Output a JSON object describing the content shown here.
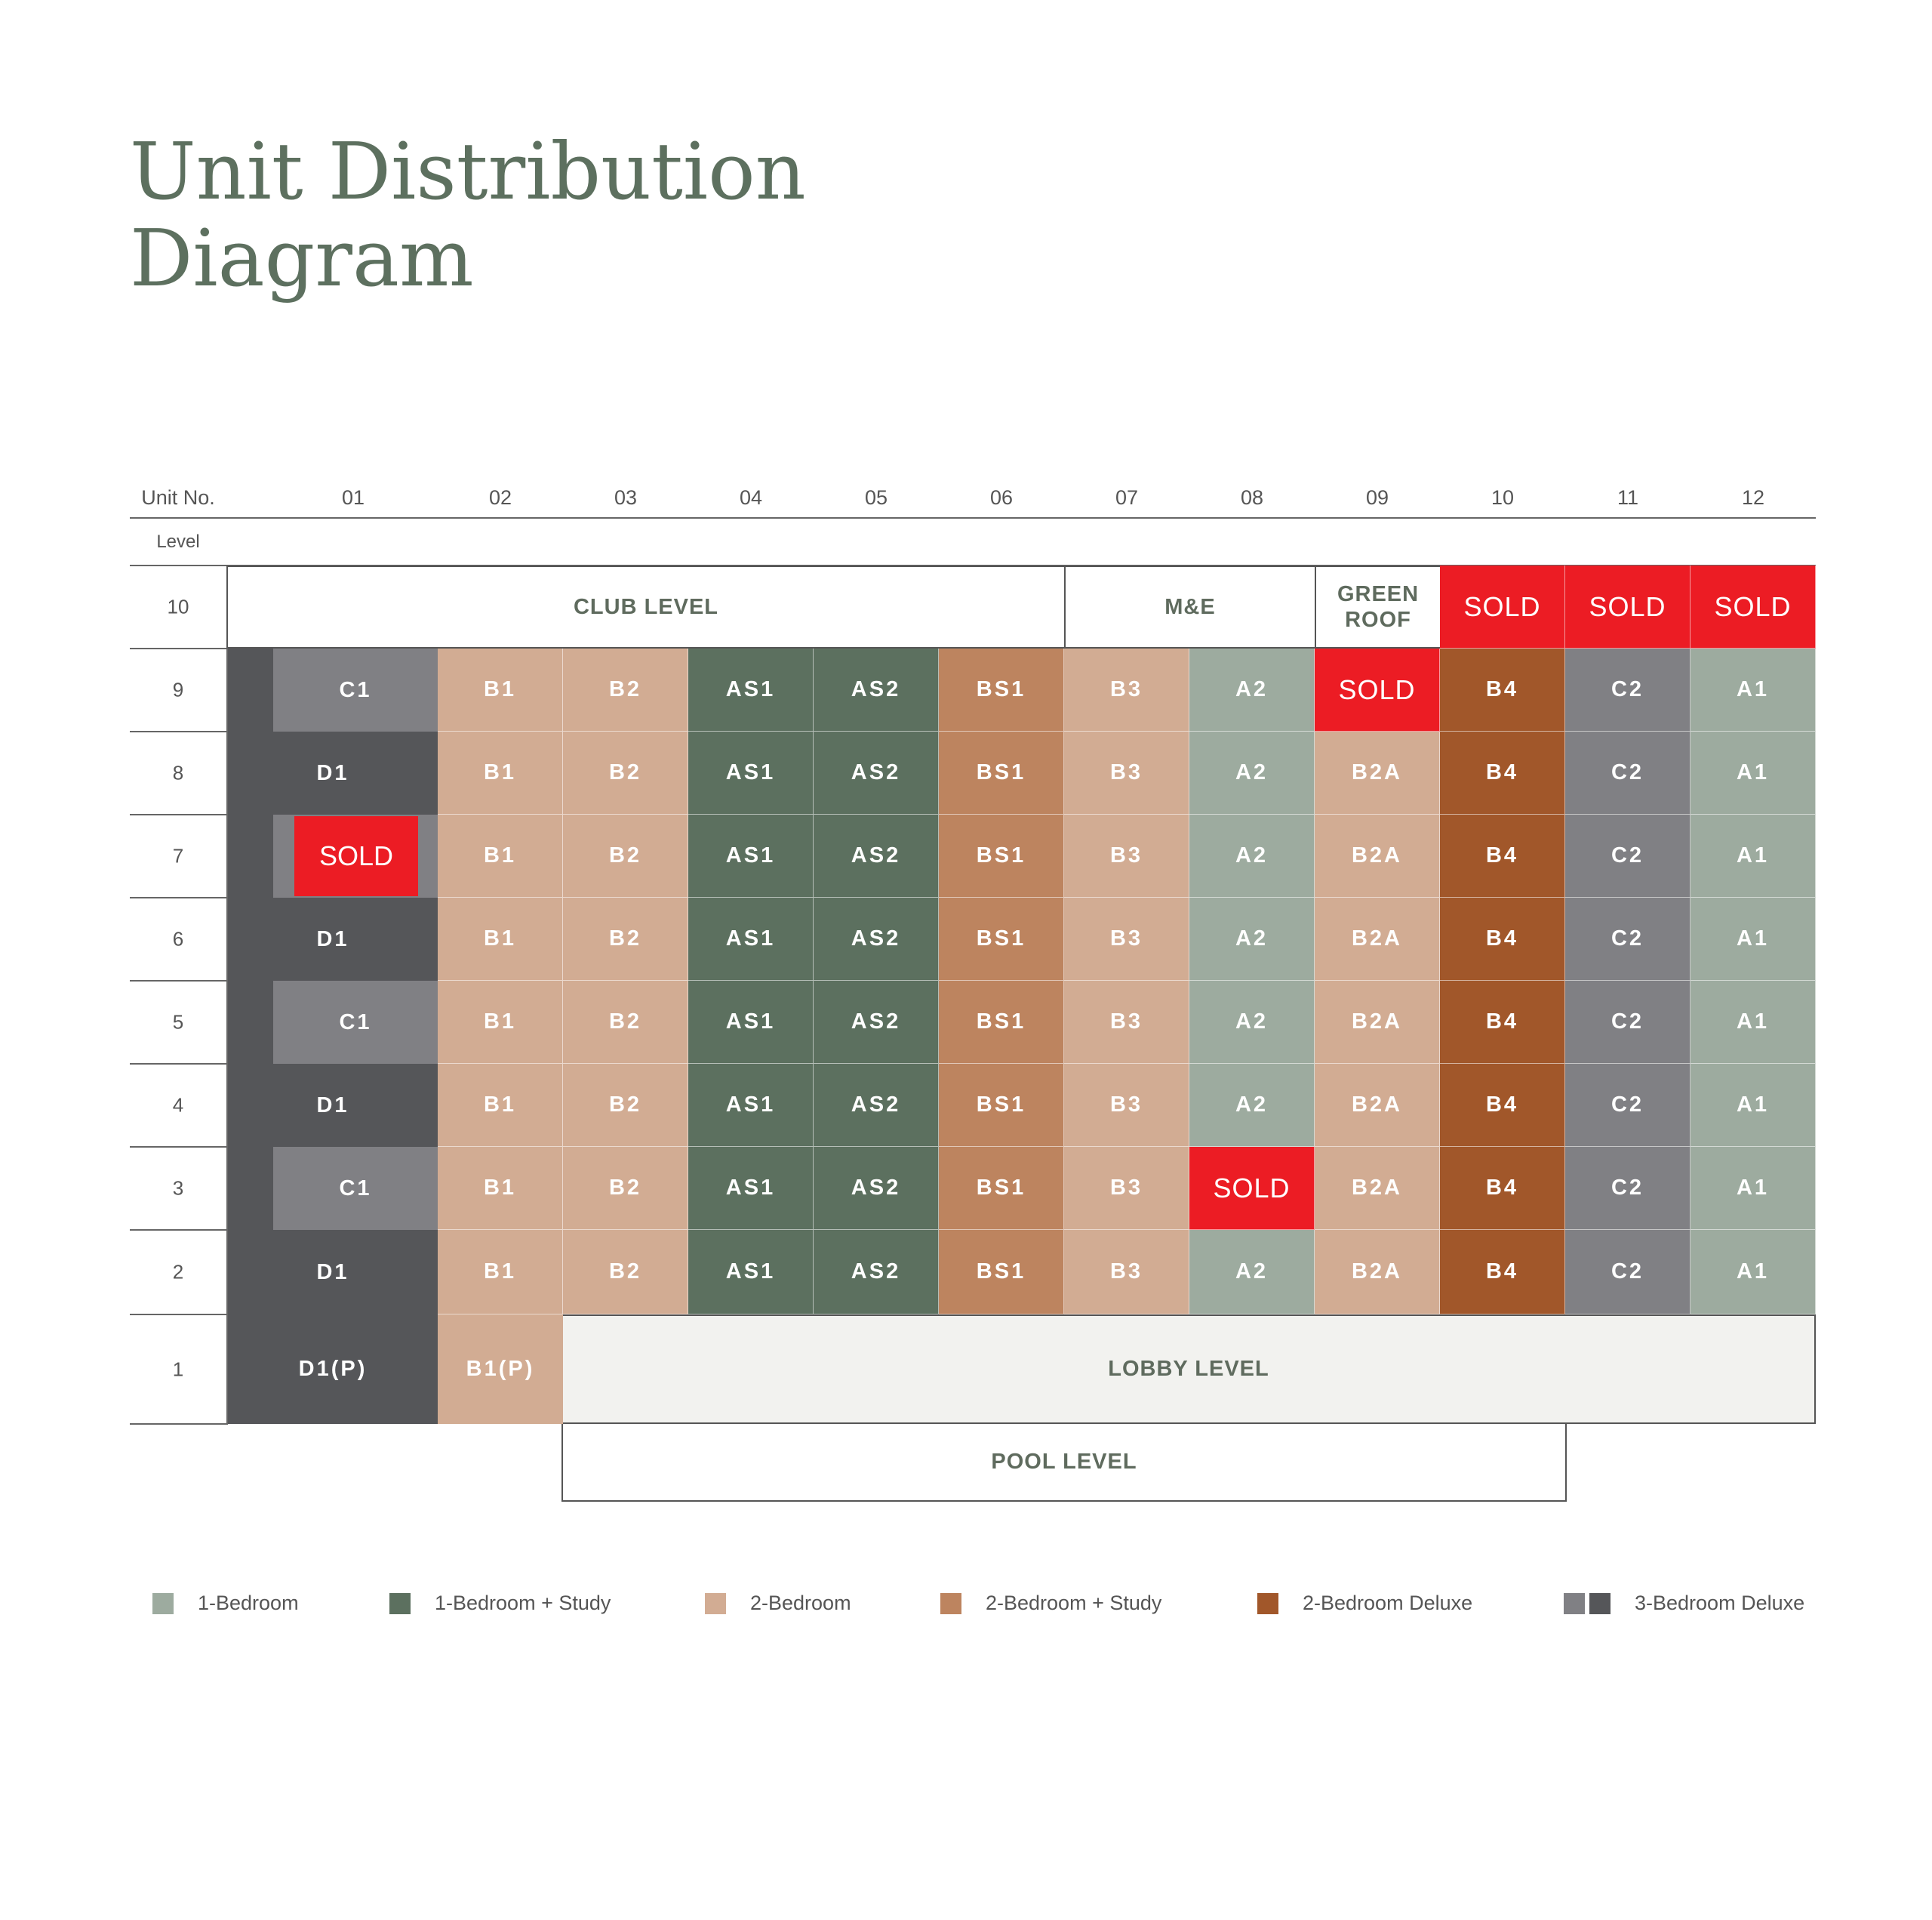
{
  "title_line1": "Unit Distribution",
  "title_line2": "Diagram",
  "header": {
    "unit_no_label": "Unit No.",
    "level_label": "Level",
    "units": [
      "01",
      "02",
      "03",
      "04",
      "05",
      "06",
      "07",
      "08",
      "09",
      "10",
      "11",
      "12"
    ]
  },
  "colors": {
    "one_bed": "#9dab9f",
    "one_bed_study": "#5c705f",
    "two_bed": "#d2ac93",
    "two_bed_study": "#bd845f",
    "two_bed_deluxe": "#a1572a",
    "three_bed_deluxe_light": "#808084",
    "three_bed_deluxe_dark": "#555659",
    "sold": "#ec1c24"
  },
  "levels": [
    "10",
    "9",
    "8",
    "7",
    "6",
    "5",
    "4",
    "3",
    "2",
    "1"
  ],
  "level10": {
    "club": "CLUB LEVEL",
    "me": "M&E",
    "green_roof": "GREEN ROOF",
    "sold": [
      "SOLD",
      "SOLD",
      "SOLD"
    ]
  },
  "rows": [
    {
      "level": "9",
      "col1": {
        "label": "C1",
        "kind": "c1"
      },
      "units": [
        {
          "label": "B1",
          "type": "two_bed"
        },
        {
          "label": "B2",
          "type": "two_bed"
        },
        {
          "label": "AS1",
          "type": "one_bed_study"
        },
        {
          "label": "AS2",
          "type": "one_bed_study"
        },
        {
          "label": "BS1",
          "type": "two_bed_study"
        },
        {
          "label": "B3",
          "type": "two_bed"
        },
        {
          "label": "A2",
          "type": "one_bed"
        },
        {
          "label": "SOLD",
          "type": "sold"
        },
        {
          "label": "B4",
          "type": "two_bed_deluxe"
        },
        {
          "label": "C2",
          "type": "three_bed_deluxe_light"
        },
        {
          "label": "A1",
          "type": "one_bed"
        }
      ]
    },
    {
      "level": "8",
      "col1": {
        "label": "D1",
        "kind": "d1"
      },
      "units": [
        {
          "label": "B1",
          "type": "two_bed"
        },
        {
          "label": "B2",
          "type": "two_bed"
        },
        {
          "label": "AS1",
          "type": "one_bed_study"
        },
        {
          "label": "AS2",
          "type": "one_bed_study"
        },
        {
          "label": "BS1",
          "type": "two_bed_study"
        },
        {
          "label": "B3",
          "type": "two_bed"
        },
        {
          "label": "A2",
          "type": "one_bed"
        },
        {
          "label": "B2A",
          "type": "two_bed"
        },
        {
          "label": "B4",
          "type": "two_bed_deluxe"
        },
        {
          "label": "C2",
          "type": "three_bed_deluxe_light"
        },
        {
          "label": "A1",
          "type": "one_bed"
        }
      ]
    },
    {
      "level": "7",
      "col1": {
        "label": "SOLD",
        "kind": "c1sold"
      },
      "units": [
        {
          "label": "B1",
          "type": "two_bed"
        },
        {
          "label": "B2",
          "type": "two_bed"
        },
        {
          "label": "AS1",
          "type": "one_bed_study"
        },
        {
          "label": "AS2",
          "type": "one_bed_study"
        },
        {
          "label": "BS1",
          "type": "two_bed_study"
        },
        {
          "label": "B3",
          "type": "two_bed"
        },
        {
          "label": "A2",
          "type": "one_bed"
        },
        {
          "label": "B2A",
          "type": "two_bed"
        },
        {
          "label": "B4",
          "type": "two_bed_deluxe"
        },
        {
          "label": "C2",
          "type": "three_bed_deluxe_light"
        },
        {
          "label": "A1",
          "type": "one_bed"
        }
      ]
    },
    {
      "level": "6",
      "col1": {
        "label": "D1",
        "kind": "d1"
      },
      "units": [
        {
          "label": "B1",
          "type": "two_bed"
        },
        {
          "label": "B2",
          "type": "two_bed"
        },
        {
          "label": "AS1",
          "type": "one_bed_study"
        },
        {
          "label": "AS2",
          "type": "one_bed_study"
        },
        {
          "label": "BS1",
          "type": "two_bed_study"
        },
        {
          "label": "B3",
          "type": "two_bed"
        },
        {
          "label": "A2",
          "type": "one_bed"
        },
        {
          "label": "B2A",
          "type": "two_bed"
        },
        {
          "label": "B4",
          "type": "two_bed_deluxe"
        },
        {
          "label": "C2",
          "type": "three_bed_deluxe_light"
        },
        {
          "label": "A1",
          "type": "one_bed"
        }
      ]
    },
    {
      "level": "5",
      "col1": {
        "label": "C1",
        "kind": "c1"
      },
      "units": [
        {
          "label": "B1",
          "type": "two_bed"
        },
        {
          "label": "B2",
          "type": "two_bed"
        },
        {
          "label": "AS1",
          "type": "one_bed_study"
        },
        {
          "label": "AS2",
          "type": "one_bed_study"
        },
        {
          "label": "BS1",
          "type": "two_bed_study"
        },
        {
          "label": "B3",
          "type": "two_bed"
        },
        {
          "label": "A2",
          "type": "one_bed"
        },
        {
          "label": "B2A",
          "type": "two_bed"
        },
        {
          "label": "B4",
          "type": "two_bed_deluxe"
        },
        {
          "label": "C2",
          "type": "three_bed_deluxe_light"
        },
        {
          "label": "A1",
          "type": "one_bed"
        }
      ]
    },
    {
      "level": "4",
      "col1": {
        "label": "D1",
        "kind": "d1"
      },
      "units": [
        {
          "label": "B1",
          "type": "two_bed"
        },
        {
          "label": "B2",
          "type": "two_bed"
        },
        {
          "label": "AS1",
          "type": "one_bed_study"
        },
        {
          "label": "AS2",
          "type": "one_bed_study"
        },
        {
          "label": "BS1",
          "type": "two_bed_study"
        },
        {
          "label": "B3",
          "type": "two_bed"
        },
        {
          "label": "A2",
          "type": "one_bed"
        },
        {
          "label": "B2A",
          "type": "two_bed"
        },
        {
          "label": "B4",
          "type": "two_bed_deluxe"
        },
        {
          "label": "C2",
          "type": "three_bed_deluxe_light"
        },
        {
          "label": "A1",
          "type": "one_bed"
        }
      ]
    },
    {
      "level": "3",
      "col1": {
        "label": "C1",
        "kind": "c1"
      },
      "units": [
        {
          "label": "B1",
          "type": "two_bed"
        },
        {
          "label": "B2",
          "type": "two_bed"
        },
        {
          "label": "AS1",
          "type": "one_bed_study"
        },
        {
          "label": "AS2",
          "type": "one_bed_study"
        },
        {
          "label": "BS1",
          "type": "two_bed_study"
        },
        {
          "label": "B3",
          "type": "two_bed"
        },
        {
          "label": "SOLD",
          "type": "sold"
        },
        {
          "label": "B2A",
          "type": "two_bed"
        },
        {
          "label": "B4",
          "type": "two_bed_deluxe"
        },
        {
          "label": "C2",
          "type": "three_bed_deluxe_light"
        },
        {
          "label": "A1",
          "type": "one_bed"
        }
      ]
    },
    {
      "level": "2",
      "col1": {
        "label": "D1",
        "kind": "d1"
      },
      "units": [
        {
          "label": "B1",
          "type": "two_bed"
        },
        {
          "label": "B2",
          "type": "two_bed"
        },
        {
          "label": "AS1",
          "type": "one_bed_study"
        },
        {
          "label": "AS2",
          "type": "one_bed_study"
        },
        {
          "label": "BS1",
          "type": "two_bed_study"
        },
        {
          "label": "B3",
          "type": "two_bed"
        },
        {
          "label": "A2",
          "type": "one_bed"
        },
        {
          "label": "B2A",
          "type": "two_bed"
        },
        {
          "label": "B4",
          "type": "two_bed_deluxe"
        },
        {
          "label": "C2",
          "type": "three_bed_deluxe_light"
        },
        {
          "label": "A1",
          "type": "one_bed"
        }
      ]
    }
  ],
  "level1": {
    "d1p": "D1(P)",
    "b1p": "B1(P)",
    "lobby": "LOBBY LEVEL"
  },
  "pool": "POOL LEVEL",
  "legend": [
    {
      "label": "1-Bedroom",
      "types": [
        "one_bed"
      ]
    },
    {
      "label": "1-Bedroom + Study",
      "types": [
        "one_bed_study"
      ]
    },
    {
      "label": "2-Bedroom",
      "types": [
        "two_bed"
      ]
    },
    {
      "label": "2-Bedroom + Study",
      "types": [
        "two_bed_study"
      ]
    },
    {
      "label": "2-Bedroom Deluxe",
      "types": [
        "two_bed_deluxe"
      ]
    },
    {
      "label": "3-Bedroom Deluxe",
      "types": [
        "three_bed_deluxe_light",
        "three_bed_deluxe_dark"
      ]
    }
  ]
}
